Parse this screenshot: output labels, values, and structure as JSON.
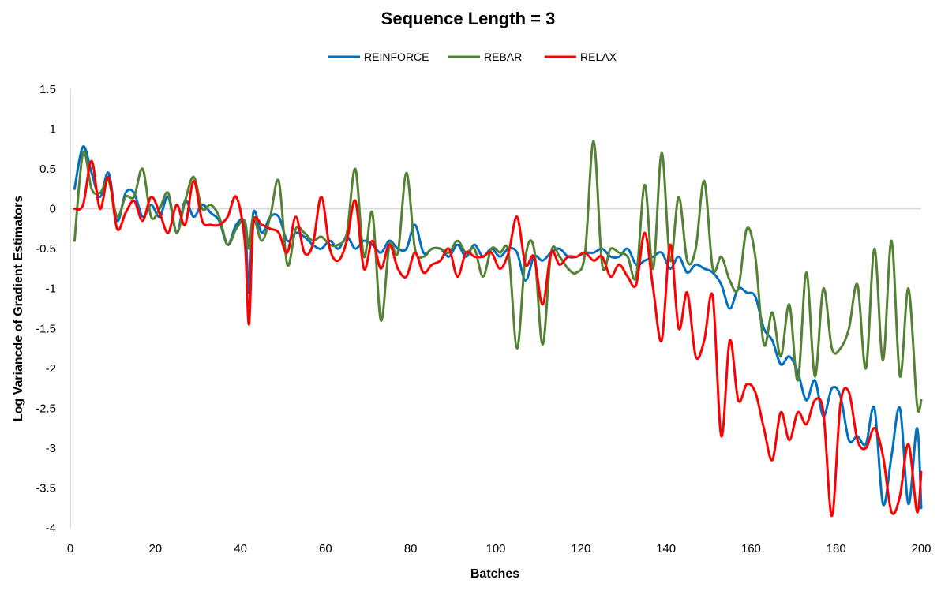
{
  "chart_data": {
    "type": "line",
    "title": "Sequence Length = 3",
    "xlabel": "Batches",
    "ylabel": "Log Variancde of Gradient  Estimators",
    "xlim": [
      0,
      200
    ],
    "ylim": [
      -4,
      1.5
    ],
    "x_ticks": [
      0,
      20,
      40,
      60,
      80,
      100,
      120,
      140,
      160,
      180,
      200
    ],
    "y_ticks": [
      1.5,
      1,
      0.5,
      0,
      -0.5,
      -1,
      -1.5,
      -2,
      -2.5,
      -3,
      -3.5,
      -4
    ],
    "legend_position": "top-center",
    "grid": false,
    "x": [
      1,
      3,
      5,
      7,
      9,
      11,
      13,
      15,
      17,
      19,
      21,
      23,
      25,
      27,
      29,
      31,
      33,
      35,
      37,
      39,
      41,
      42,
      43,
      45,
      47,
      49,
      51,
      53,
      55,
      57,
      59,
      61,
      63,
      65,
      67,
      69,
      71,
      73,
      75,
      77,
      79,
      81,
      83,
      85,
      87,
      89,
      91,
      93,
      95,
      97,
      99,
      101,
      103,
      105,
      107,
      109,
      111,
      113,
      115,
      117,
      119,
      121,
      123,
      125,
      127,
      129,
      131,
      133,
      135,
      137,
      139,
      141,
      143,
      145,
      147,
      149,
      151,
      153,
      155,
      157,
      159,
      161,
      163,
      165,
      167,
      169,
      171,
      173,
      175,
      177,
      179,
      181,
      183,
      185,
      187,
      189,
      191,
      193,
      195,
      197,
      199,
      200
    ],
    "series": [
      {
        "name": "REINFORCE",
        "color": "#0070C0",
        "values": [
          0.25,
          0.78,
          0.45,
          0.15,
          0.45,
          -0.15,
          0.2,
          0.2,
          -0.1,
          0.05,
          -0.1,
          0.15,
          -0.3,
          0.1,
          -0.1,
          0.05,
          -0.05,
          -0.15,
          -0.45,
          -0.2,
          -0.2,
          -1.05,
          -0.05,
          -0.3,
          -0.1,
          -0.1,
          -0.4,
          -0.3,
          -0.35,
          -0.45,
          -0.5,
          -0.4,
          -0.5,
          -0.35,
          -0.5,
          -0.4,
          -0.45,
          -0.55,
          -0.4,
          -0.5,
          -0.5,
          -0.2,
          -0.55,
          -0.5,
          -0.5,
          -0.6,
          -0.45,
          -0.6,
          -0.45,
          -0.6,
          -0.5,
          -0.6,
          -0.5,
          -0.55,
          -0.9,
          -0.6,
          -0.65,
          -0.55,
          -0.5,
          -0.6,
          -0.6,
          -0.55,
          -0.55,
          -0.5,
          -0.6,
          -0.6,
          -0.5,
          -0.7,
          -0.65,
          -0.6,
          -0.55,
          -0.75,
          -0.6,
          -0.8,
          -0.7,
          -0.75,
          -0.8,
          -0.95,
          -1.25,
          -1.0,
          -1.05,
          -1.1,
          -1.5,
          -1.65,
          -1.95,
          -1.85,
          -2.05,
          -2.4,
          -2.15,
          -2.6,
          -2.25,
          -2.35,
          -2.9,
          -2.85,
          -2.95,
          -2.5,
          -3.7,
          -3.1,
          -2.5,
          -3.7,
          -2.75,
          -3.75
        ]
      },
      {
        "name": "REBAR",
        "color": "#548235",
        "values": [
          -0.4,
          0.7,
          0.25,
          0.2,
          0.35,
          -0.1,
          0.15,
          0.15,
          0.5,
          -0.1,
          0.0,
          0.2,
          -0.3,
          0.1,
          0.4,
          0.0,
          0.05,
          -0.1,
          -0.45,
          -0.25,
          -0.15,
          -0.5,
          -0.1,
          -0.4,
          -0.1,
          0.35,
          -0.7,
          -0.25,
          -0.3,
          -0.4,
          -0.35,
          -0.45,
          -0.45,
          -0.3,
          0.5,
          -0.6,
          -0.05,
          -1.4,
          -0.45,
          -0.55,
          0.45,
          -0.5,
          -0.6,
          -0.5,
          -0.5,
          -0.55,
          -0.4,
          -0.55,
          -0.5,
          -0.85,
          -0.5,
          -0.55,
          -0.55,
          -1.75,
          -0.6,
          -0.5,
          -1.7,
          -0.55,
          -0.6,
          -0.75,
          -0.8,
          -0.55,
          0.85,
          -0.7,
          -0.5,
          -0.55,
          -0.6,
          -0.85,
          0.3,
          -0.75,
          0.7,
          -0.65,
          0.15,
          -0.65,
          -0.5,
          0.35,
          -0.75,
          -0.6,
          -0.9,
          -1.0,
          -0.25,
          -0.6,
          -1.7,
          -1.3,
          -1.85,
          -1.2,
          -2.15,
          -0.8,
          -2.1,
          -1.0,
          -1.75,
          -1.75,
          -1.5,
          -0.95,
          -2.0,
          -0.5,
          -1.9,
          -0.4,
          -2.1,
          -1.0,
          -2.45,
          -2.4
        ]
      },
      {
        "name": "RELAX",
        "color": "#FF0000",
        "values": [
          0.0,
          0.05,
          0.6,
          0.0,
          0.4,
          -0.25,
          -0.05,
          0.1,
          -0.15,
          0.15,
          -0.05,
          -0.3,
          0.05,
          -0.2,
          0.35,
          -0.15,
          -0.2,
          -0.2,
          -0.1,
          0.15,
          -0.4,
          -1.45,
          -0.2,
          -0.2,
          -0.25,
          -0.3,
          -0.55,
          -0.1,
          -0.55,
          -0.45,
          0.15,
          -0.5,
          -0.65,
          -0.4,
          0.1,
          -0.75,
          -0.4,
          -0.75,
          -0.45,
          -0.75,
          -0.85,
          -0.55,
          -0.8,
          -0.7,
          -0.65,
          -0.5,
          -0.85,
          -0.55,
          -0.6,
          -0.6,
          -0.55,
          -0.75,
          -0.55,
          -0.1,
          -0.7,
          -0.6,
          -1.2,
          -0.55,
          -0.7,
          -0.6,
          -0.6,
          -0.55,
          -0.65,
          -0.6,
          -0.85,
          -0.7,
          -0.85,
          -0.95,
          -0.3,
          -1.0,
          -1.65,
          -0.45,
          -1.5,
          -1.05,
          -1.85,
          -1.65,
          -1.1,
          -2.85,
          -1.65,
          -2.4,
          -2.2,
          -2.3,
          -2.75,
          -3.15,
          -2.55,
          -2.9,
          -2.55,
          -2.7,
          -2.4,
          -2.55,
          -3.85,
          -2.45,
          -2.3,
          -2.9,
          -3.0,
          -2.75,
          -3.1,
          -3.8,
          -3.6,
          -2.95,
          -3.8,
          -3.3
        ]
      }
    ]
  }
}
